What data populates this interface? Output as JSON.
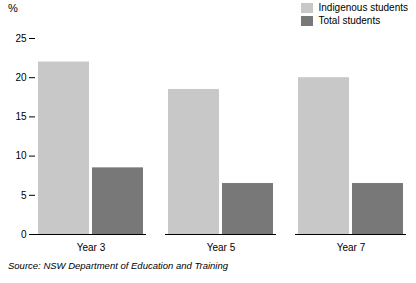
{
  "chart_data": {
    "type": "bar",
    "categories": [
      "Year 3",
      "Year 5",
      "Year 7"
    ],
    "series": [
      {
        "name": "Indigenous students",
        "color": "#c8c8c8",
        "values": [
          22,
          18.5,
          20
        ]
      },
      {
        "name": "Total students",
        "color": "#787878",
        "values": [
          8.5,
          6.5,
          6.5
        ]
      }
    ],
    "ylabel": "%",
    "ylim": [
      0,
      25
    ],
    "yticks": [
      0,
      5,
      10,
      15,
      20,
      25
    ],
    "grid": false,
    "legend": "upper right",
    "caption": "Source: NSW Department of Education and Training"
  }
}
